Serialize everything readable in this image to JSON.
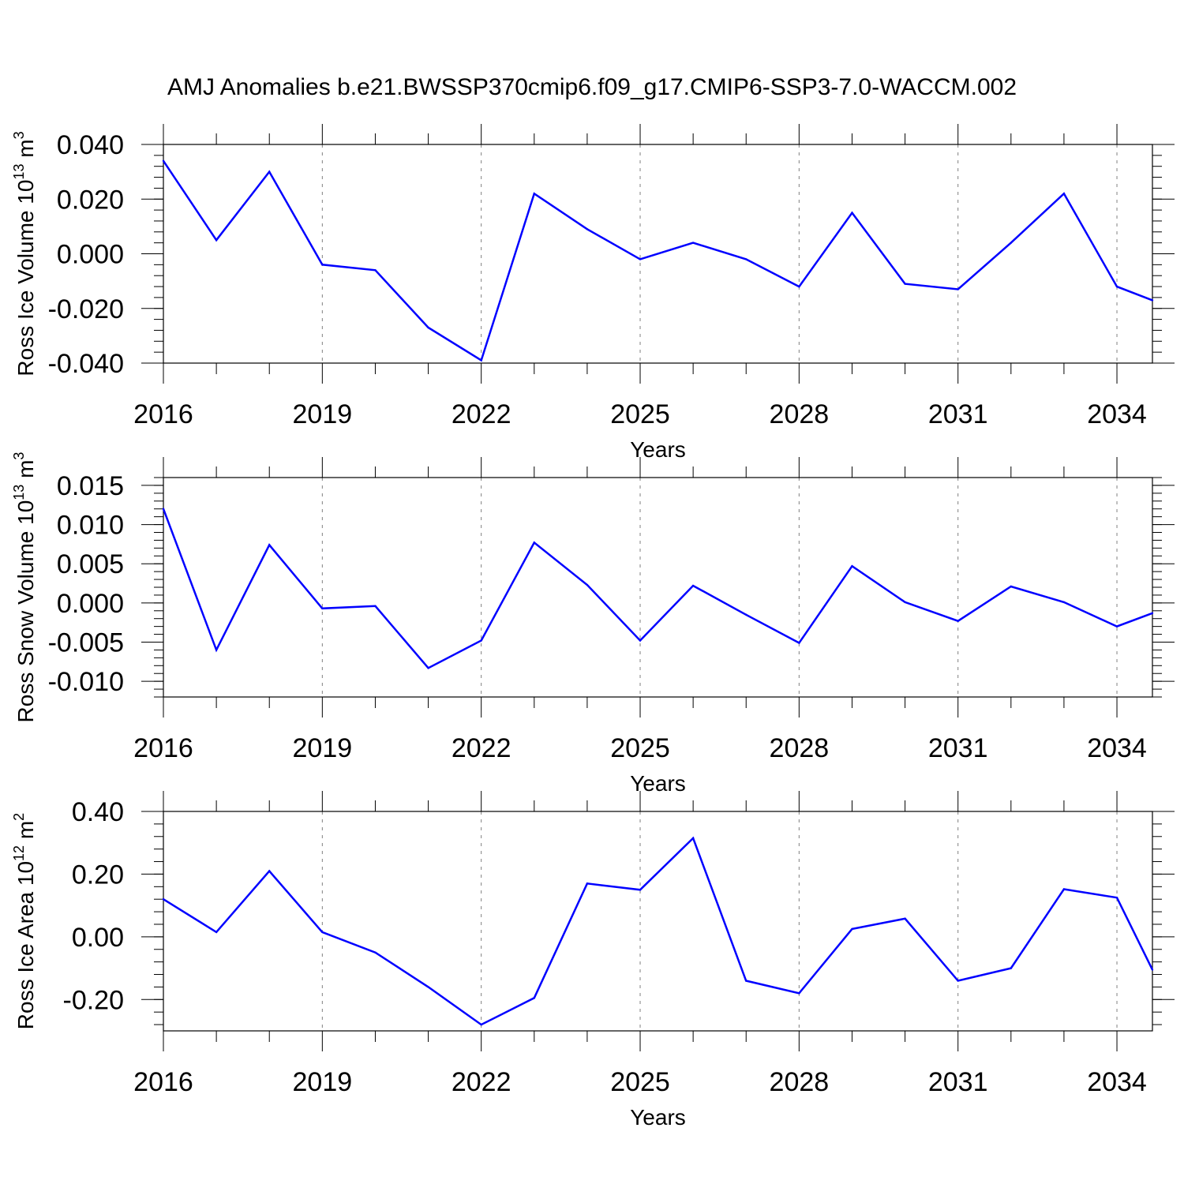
{
  "title": "AMJ Anomalies b.e21.BWSSP370cmip6.f09_g17.CMIP6-SSP3-7.0-WACCM.002",
  "line_color": "#0000ff",
  "chart_data": [
    {
      "type": "line",
      "ylabel_main": "Ross Ice Volume 10",
      "ylabel_exp1": "13",
      "ylabel_unit": " m",
      "ylabel_exp2": "3",
      "xlabel": "Years",
      "xlim": [
        2016,
        2034.67
      ],
      "ylim": [
        -0.04,
        0.04
      ],
      "x_ticks": [
        2016,
        2019,
        2022,
        2025,
        2028,
        2031,
        2034
      ],
      "y_ticks": [
        -0.04,
        -0.02,
        0.0,
        0.02,
        0.04
      ],
      "y_tick_labels": [
        "-0.040",
        "-0.020",
        "0.000",
        "0.020",
        "0.040"
      ],
      "grid": "vertical dashed at major x ticks",
      "series": [
        {
          "x": [
            2016,
            2017,
            2018,
            2019,
            2020,
            2021,
            2022,
            2023,
            2024,
            2025,
            2026,
            2027,
            2028,
            2029,
            2030,
            2031,
            2032,
            2033,
            2034,
            2034.67
          ],
          "values": [
            0.034,
            0.005,
            0.03,
            -0.004,
            -0.006,
            -0.027,
            -0.039,
            0.022,
            0.009,
            -0.002,
            0.004,
            -0.002,
            -0.012,
            0.015,
            -0.011,
            -0.013,
            0.004,
            0.022,
            -0.012,
            -0.017
          ]
        }
      ]
    },
    {
      "type": "line",
      "ylabel_main": "Ross Snow Volume 10",
      "ylabel_exp1": "13",
      "ylabel_unit": " m",
      "ylabel_exp2": "3",
      "xlabel": "Years",
      "xlim": [
        2016,
        2034.67
      ],
      "ylim": [
        -0.012,
        0.016
      ],
      "x_ticks": [
        2016,
        2019,
        2022,
        2025,
        2028,
        2031,
        2034
      ],
      "y_ticks": [
        -0.01,
        -0.005,
        0.0,
        0.005,
        0.01,
        0.015
      ],
      "y_tick_labels": [
        "-0.010",
        "-0.005",
        "0.000",
        "0.005",
        "0.010",
        "0.015"
      ],
      "grid": "vertical dashed at major x ticks",
      "series": [
        {
          "x": [
            2016,
            2017,
            2018,
            2019,
            2020,
            2021,
            2022,
            2023,
            2024,
            2025,
            2026,
            2027,
            2028,
            2029,
            2030,
            2031,
            2032,
            2033,
            2034,
            2034.67
          ],
          "values": [
            0.012,
            -0.006,
            0.0074,
            -0.0007,
            -0.0004,
            -0.0083,
            -0.0048,
            0.0077,
            0.0023,
            -0.0048,
            0.0022,
            -0.0015,
            -0.0051,
            0.0047,
            0.0001,
            -0.0023,
            0.0021,
            0.0001,
            -0.003,
            -0.0013
          ]
        }
      ]
    },
    {
      "type": "line",
      "ylabel_main": "Ross Ice Area 10",
      "ylabel_exp1": "12",
      "ylabel_unit": " m",
      "ylabel_exp2": "2",
      "xlabel": "Years",
      "xlim": [
        2016,
        2034.67
      ],
      "ylim": [
        -0.3,
        0.4
      ],
      "x_ticks": [
        2016,
        2019,
        2022,
        2025,
        2028,
        2031,
        2034
      ],
      "y_ticks": [
        -0.2,
        0.0,
        0.2,
        0.4
      ],
      "y_tick_labels": [
        "-0.20",
        "0.00",
        "0.20",
        "0.40"
      ],
      "grid": "vertical dashed at major x ticks",
      "series": [
        {
          "x": [
            2016,
            2017,
            2018,
            2019,
            2020,
            2021,
            2022,
            2023,
            2024,
            2025,
            2026,
            2027,
            2028,
            2029,
            2030,
            2031,
            2032,
            2033,
            2034,
            2034.67
          ],
          "values": [
            0.12,
            0.015,
            0.21,
            0.015,
            -0.05,
            -0.16,
            -0.28,
            -0.195,
            0.17,
            0.15,
            0.315,
            -0.14,
            -0.18,
            0.025,
            0.058,
            -0.14,
            -0.1,
            0.152,
            0.125,
            -0.105
          ]
        }
      ]
    }
  ]
}
